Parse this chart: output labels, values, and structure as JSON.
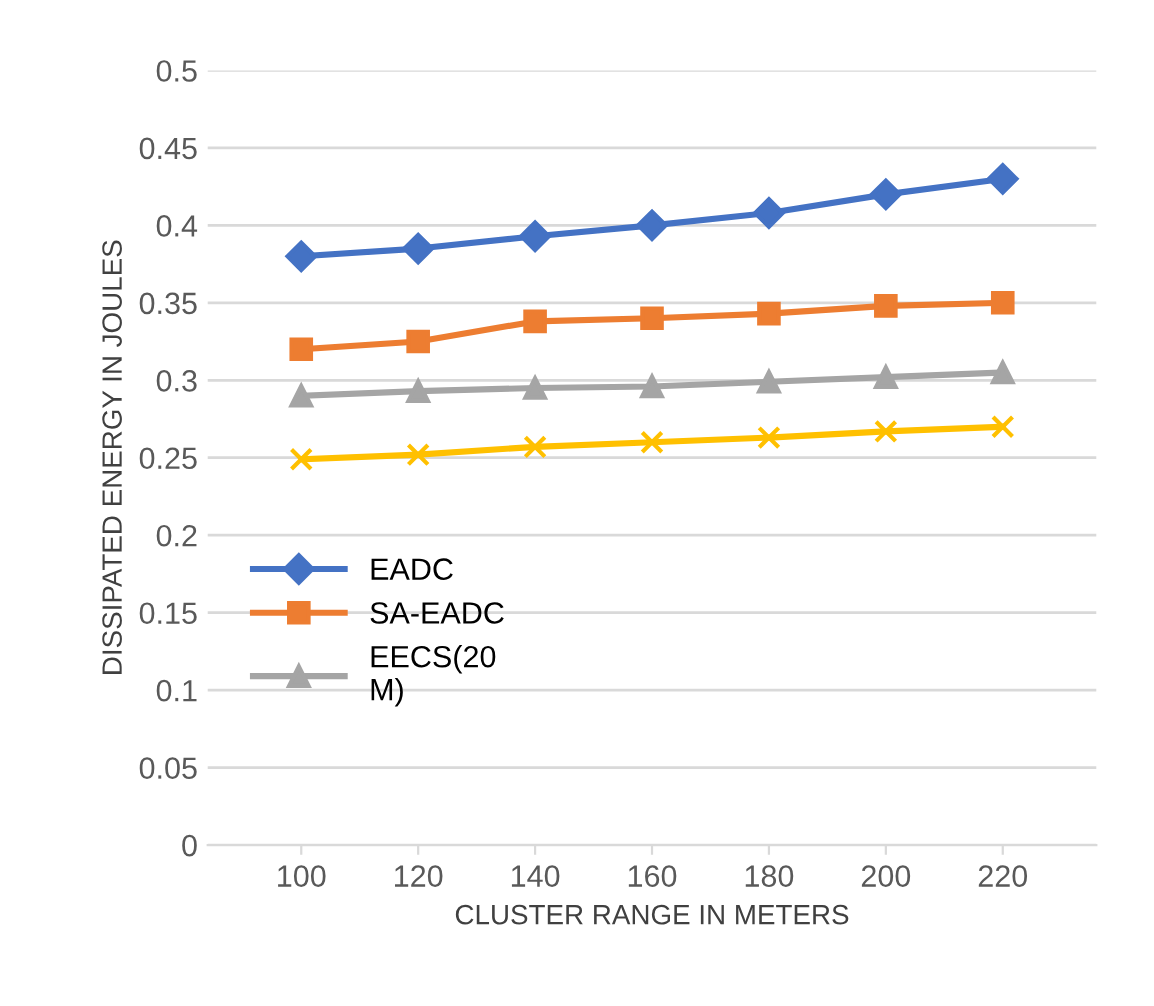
{
  "chart_data": {
    "type": "line",
    "xlabel": "CLUSTER RANGE IN METERS",
    "ylabel": "DISSIPATED ENERGY IN JOULES",
    "categories": [
      "100",
      "120",
      "140",
      "160",
      "180",
      "200",
      "220"
    ],
    "series": [
      {
        "name": "EADC",
        "color": "#4472c4",
        "marker": "diamond",
        "values": [
          0.38,
          0.385,
          0.393,
          0.4,
          0.408,
          0.42,
          0.43
        ]
      },
      {
        "name": "SA-EADC",
        "color": "#ed7d31",
        "marker": "square",
        "values": [
          0.32,
          0.325,
          0.338,
          0.34,
          0.343,
          0.348,
          0.35
        ]
      },
      {
        "name": "EECS(20\nM)",
        "color": "#a5a5a5",
        "marker": "triangle",
        "values": [
          0.29,
          0.293,
          0.295,
          0.296,
          0.299,
          0.302,
          0.305
        ]
      },
      {
        "color": "#ffc000",
        "marker": "cross",
        "values": [
          0.249,
          0.252,
          0.257,
          0.26,
          0.263,
          0.267,
          0.27
        ]
      }
    ],
    "ylim": [
      0,
      0.5
    ],
    "yticks": [
      0,
      0.05,
      0.1,
      0.15,
      0.2,
      0.25,
      0.3,
      0.35,
      0.4,
      0.45,
      0.5
    ],
    "grid": "y",
    "legend": "center left"
  }
}
